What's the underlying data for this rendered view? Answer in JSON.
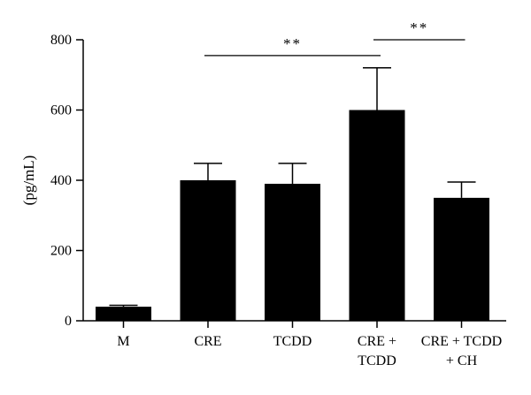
{
  "chart_data": {
    "type": "bar",
    "title": "",
    "xlabel": "",
    "ylabel": "(pg/mL)",
    "ylim": [
      0,
      800
    ],
    "yticks": [
      0,
      200,
      400,
      600,
      800
    ],
    "categories": [
      [
        "M"
      ],
      [
        "CRE"
      ],
      [
        "TCDD"
      ],
      [
        "CRE +",
        "TCDD"
      ],
      [
        "CRE + TCDD",
        "+ CH"
      ]
    ],
    "values": [
      40,
      400,
      390,
      600,
      350
    ],
    "errors": [
      4,
      48,
      58,
      120,
      45
    ],
    "bar_color": "#000000",
    "grid": false,
    "legend": "none",
    "significance": [
      {
        "from": 1,
        "to": 3,
        "label": "**",
        "y": 755
      },
      {
        "from": 3,
        "to": 4,
        "label": "**",
        "y": 800
      }
    ]
  }
}
